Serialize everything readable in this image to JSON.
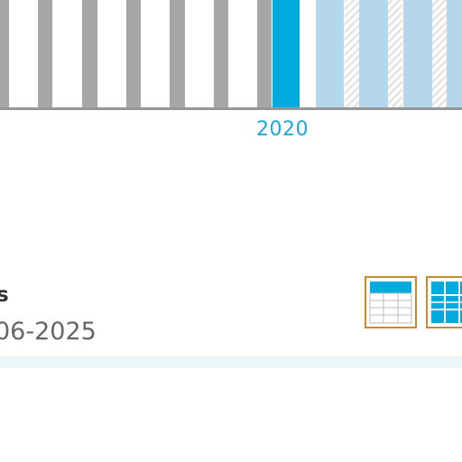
{
  "timeline": {
    "selected_year": "2020",
    "colors": {
      "past": "#a6a6a6",
      "current": "#00aadc",
      "future": "#b4d7eb",
      "axis": "#969696"
    }
  },
  "section": {
    "title": "s",
    "subtitle": "06-2025"
  },
  "view_toggle": {
    "table_icon": "table-view-icon",
    "grid_icon": "grid-view-icon",
    "accent": "#c98a2e"
  }
}
